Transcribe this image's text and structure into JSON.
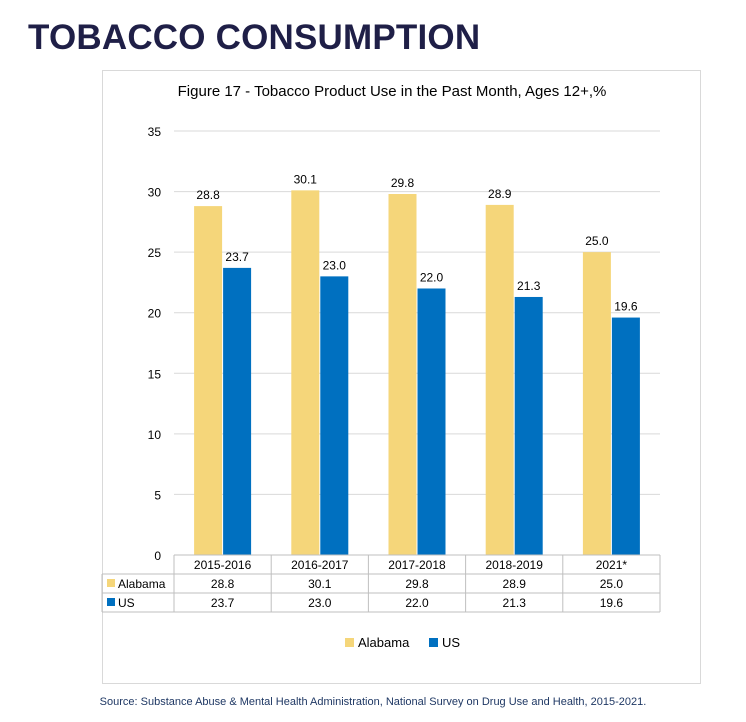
{
  "page": {
    "heading": "TOBACCO CONSUMPTION",
    "source": "Source: Substance Abuse & Mental Health Administration, National Survey on Drug Use and Health, 2015-2021."
  },
  "chart_data": {
    "type": "bar",
    "title": "Figure 17 - Tobacco Product Use in the Past Month, Ages 12+,%",
    "xlabel": "",
    "ylabel": "",
    "categories": [
      "2015-2016",
      "2016-2017",
      "2017-2018",
      "2018-2019",
      "2021*"
    ],
    "series": [
      {
        "name": "Alabama",
        "color": "#f5d67a",
        "values": [
          28.8,
          30.1,
          29.8,
          28.9,
          25.0
        ]
      },
      {
        "name": "US",
        "color": "#0070c0",
        "values": [
          23.7,
          23.0,
          22.0,
          21.3,
          19.6
        ]
      }
    ],
    "ylim": [
      0,
      35
    ],
    "yticks": [
      0,
      5,
      10,
      15,
      20,
      25,
      30,
      35
    ],
    "grid": true,
    "data_table": true,
    "legend": "bottom"
  }
}
